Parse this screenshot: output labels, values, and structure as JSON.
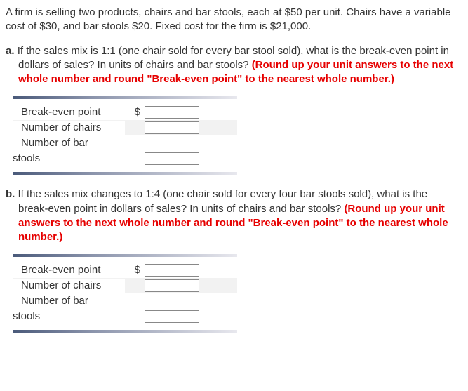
{
  "intro": "A firm is selling two products, chairs and bar stools, each at $50 per unit. Chairs have a variable cost of $30, and bar stools $20. Fixed cost for the firm is $21,000.",
  "partA": {
    "label": "a.",
    "question": "If the sales mix is 1:1 (one chair sold for every bar stool sold), what is the break-even point in dollars of sales? In units of chairs and bar stools? ",
    "hint": "(Round up your unit answers to the next whole number and round \"Break-even point\" to the nearest whole number.)",
    "rows": {
      "r1": {
        "label": "Break-even point",
        "prefix": "$",
        "value": ""
      },
      "r2": {
        "label": "Number of chairs",
        "prefix": "",
        "value": ""
      },
      "r3a": {
        "label": "Number of bar"
      },
      "r3b": {
        "label": "stools",
        "prefix": "",
        "value": ""
      }
    }
  },
  "partB": {
    "label": "b.",
    "question": "If the sales mix changes to 1:4 (one chair sold for every four bar stools sold), what is the break-even point in dollars of sales? In units of chairs and bar stools? ",
    "hint": "(Round up your unit answers to the next whole number and round \"Break-even point\" to the nearest whole number.)",
    "rows": {
      "r1": {
        "label": "Break-even point",
        "prefix": "$",
        "value": ""
      },
      "r2": {
        "label": "Number of chairs",
        "prefix": "",
        "value": ""
      },
      "r3a": {
        "label": "Number of bar"
      },
      "r3b": {
        "label": "stools",
        "prefix": "",
        "value": ""
      }
    }
  }
}
